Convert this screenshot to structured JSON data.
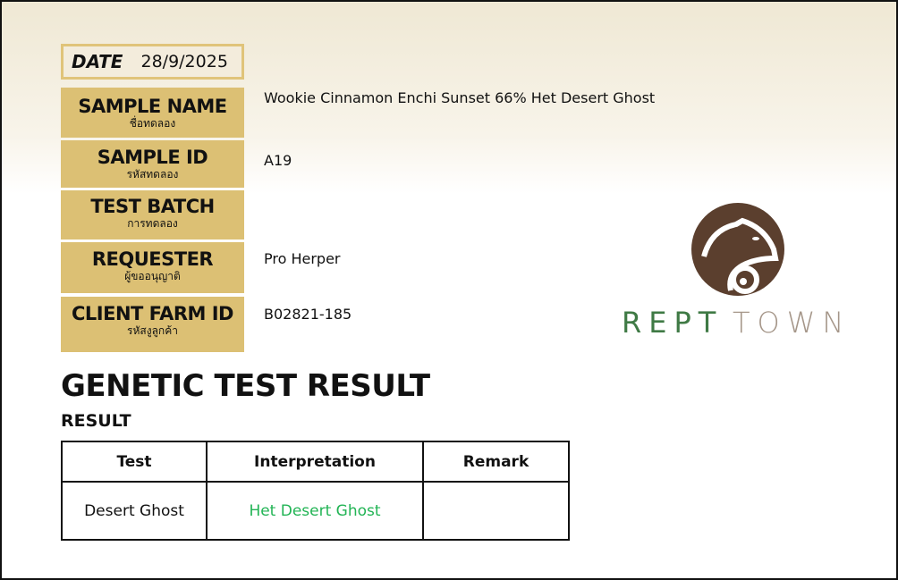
{
  "date": {
    "label": "DATE",
    "value": "28/9/2025"
  },
  "fields": [
    {
      "label": "SAMPLE NAME",
      "label_th": "ชื่อทดลอง",
      "value": "Wookie Cinnamon Enchi Sunset 66% Het Desert Ghost"
    },
    {
      "label": "SAMPLE ID",
      "label_th": "รหัสทดลอง",
      "value": "A19"
    },
    {
      "label": "TEST BATCH",
      "label_th": "การทดลอง",
      "value": ""
    },
    {
      "label": "REQUESTER",
      "label_th": "ผู้ขออนุญาติ",
      "value": "Pro Herper"
    },
    {
      "label": "CLIENT FARM ID",
      "label_th": "รหัสงูลูกค้า",
      "value": "B02821-185"
    }
  ],
  "title": "GENETIC TEST RESULT",
  "subtitle": "RESULT",
  "table": {
    "headers": [
      "Test",
      "Interpretation",
      "Remark"
    ],
    "rows": [
      [
        "Desert Ghost",
        "Het Desert Ghost",
        ""
      ]
    ]
  },
  "logo": {
    "text_a": "REPT",
    "text_b": "TOWN",
    "brand_brown": "#5b3f2e",
    "brand_green": "#3f7a45"
  },
  "colors": {
    "label_gold": "#dcc074",
    "interpretation_green": "#22b455"
  }
}
